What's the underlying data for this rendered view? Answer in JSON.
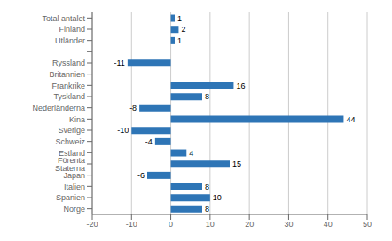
{
  "chart_data": {
    "type": "bar",
    "orientation": "horizontal",
    "categories": [
      "Norge",
      "Spanien",
      "Italien",
      "Japan",
      "Förenta Staterna",
      "Estland",
      "Schweiz",
      "Sverige",
      "Kina",
      "Nederländerna",
      "Tyskland",
      "Frankrike",
      "Britannien",
      "Ryssland",
      null,
      "Utländer",
      "Finland",
      "Total antalet"
    ],
    "values": [
      8,
      10,
      8,
      -6,
      15,
      4,
      -4,
      -10,
      44,
      -8,
      8,
      16,
      0,
      -11,
      null,
      1,
      2,
      1
    ],
    "color": "#2e75b6",
    "xlim": [
      -20,
      50
    ],
    "xticks": [
      -20,
      -10,
      0,
      10,
      20,
      30,
      40,
      50
    ],
    "grid": true,
    "data_labels": true
  }
}
